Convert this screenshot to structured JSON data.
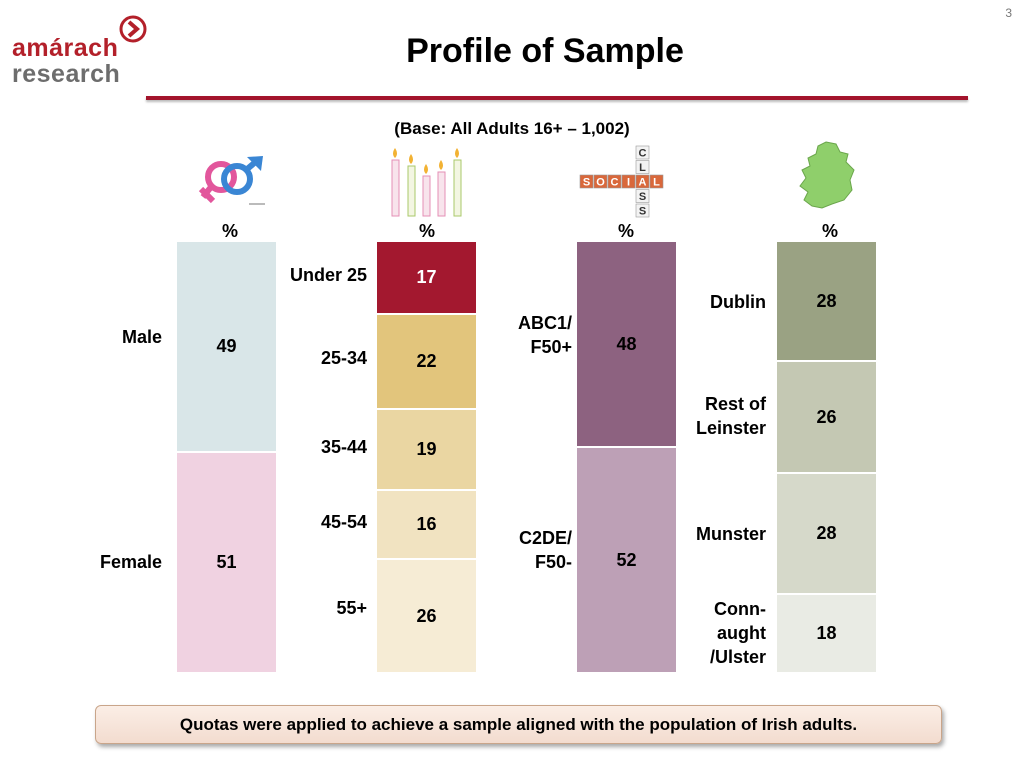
{
  "page": {
    "number": "3",
    "title": "Profile of Sample",
    "base": "(Base:  All Adults 16+ – 1,002)"
  },
  "logo": {
    "line1": "amárach",
    "line2": "research"
  },
  "icons": [
    "gender-symbols-icon",
    "birthday-candles-icon",
    "social-class-tiles-icon",
    "ireland-map-icon"
  ],
  "social_tiles": {
    "across": "SOCIAL",
    "down": "CLASS"
  },
  "footer": "Quotas were applied to achieve a sample aligned with the population of Irish adults.",
  "chart_data": [
    {
      "type": "bar",
      "unit": "%",
      "categories": [
        "Male",
        "Female"
      ],
      "values": [
        49,
        51
      ],
      "colors": [
        "#d9e6e8",
        "#f0d2e1"
      ]
    },
    {
      "type": "bar",
      "unit": "%",
      "categories": [
        "Under 25",
        "25-34",
        "35-44",
        "45-54",
        "55+"
      ],
      "values": [
        17,
        22,
        19,
        16,
        26
      ],
      "colors": [
        "#a3182f",
        "#e2c57c",
        "#ead6a2",
        "#f1e3c1",
        "#f6ecd5"
      ],
      "text_colors": [
        "#ffffff",
        "#000000",
        "#000000",
        "#000000",
        "#000000"
      ]
    },
    {
      "type": "bar",
      "unit": "%",
      "categories": [
        "ABC1/\nF50+",
        "C2DE/\nF50-"
      ],
      "values": [
        48,
        52
      ],
      "colors": [
        "#8d6280",
        "#bda0b6"
      ]
    },
    {
      "type": "bar",
      "unit": "%",
      "categories": [
        "Dublin",
        "Rest of\nLeinster",
        "Munster",
        "Conn-\naught\n/Ulster"
      ],
      "values": [
        28,
        26,
        28,
        18
      ],
      "colors": [
        "#9aa283",
        "#c4c8b3",
        "#d6d9ca",
        "#e9ebe4"
      ]
    }
  ]
}
